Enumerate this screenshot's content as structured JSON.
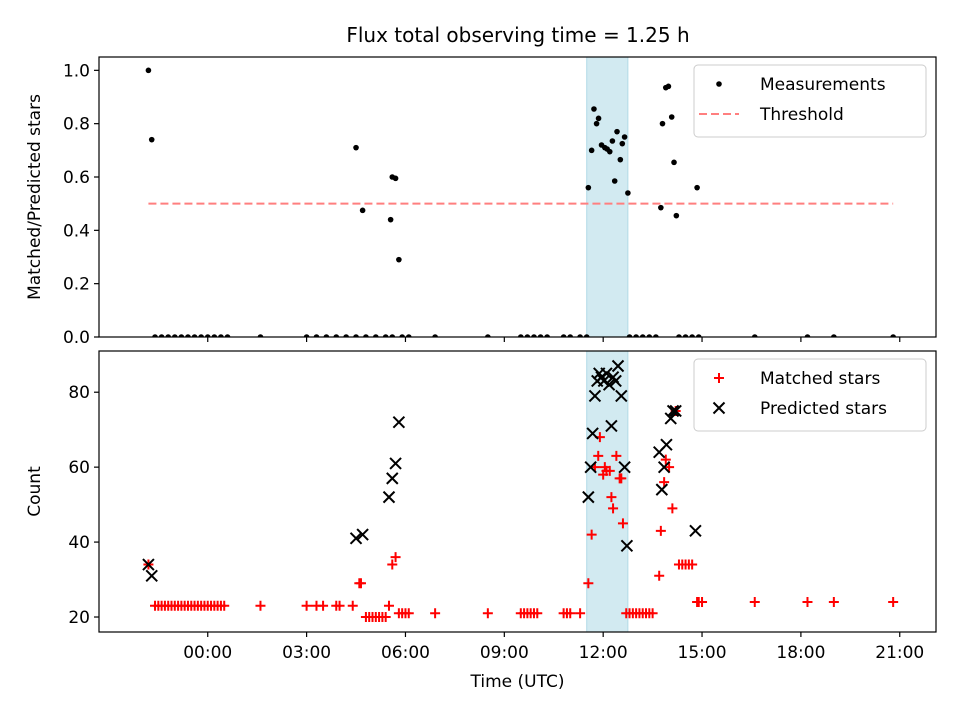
{
  "title": "Flux total observing time = 1.25 h",
  "chart_data": [
    {
      "type": "scatter",
      "panel": "top",
      "ylabel": "Matched/Predicted stars",
      "ylim": [
        0,
        1.05
      ],
      "yticks": [
        0.0,
        0.2,
        0.4,
        0.6,
        0.8,
        1.0
      ],
      "ytick_labels": [
        "0.0",
        "0.2",
        "0.4",
        "0.6",
        "0.8",
        "1.0"
      ],
      "xlim_hours": [
        -3.3,
        22.1
      ],
      "highlight_span_hours": [
        11.5,
        12.75
      ],
      "highlight_color": "#add8e6",
      "legend_position": "upper right",
      "series": [
        {
          "name": "Measurements",
          "kind": "dot",
          "color": "#000000",
          "points": [
            [
              -1.8,
              1.0
            ],
            [
              -1.7,
              0.74
            ],
            [
              4.5,
              0.71
            ],
            [
              4.7,
              0.475
            ],
            [
              5.55,
              0.44
            ],
            [
              5.6,
              0.6
            ],
            [
              5.7,
              0.595
            ],
            [
              5.8,
              0.29
            ],
            [
              11.55,
              0.56
            ],
            [
              11.65,
              0.7
            ],
            [
              11.72,
              0.855
            ],
            [
              11.8,
              0.8
            ],
            [
              11.86,
              0.82
            ],
            [
              11.95,
              0.72
            ],
            [
              12.05,
              0.71
            ],
            [
              12.12,
              0.705
            ],
            [
              12.2,
              0.695
            ],
            [
              12.28,
              0.735
            ],
            [
              12.35,
              0.585
            ],
            [
              12.42,
              0.77
            ],
            [
              12.52,
              0.665
            ],
            [
              12.58,
              0.725
            ],
            [
              12.65,
              0.75
            ],
            [
              12.75,
              0.54
            ],
            [
              13.75,
              0.485
            ],
            [
              13.8,
              0.8
            ],
            [
              13.9,
              0.935
            ],
            [
              13.98,
              0.94
            ],
            [
              14.08,
              0.825
            ],
            [
              14.15,
              0.655
            ],
            [
              14.22,
              0.455
            ],
            [
              14.85,
              0.56
            ],
            [
              -1.6,
              0
            ],
            [
              -1.4,
              0
            ],
            [
              -1.2,
              0
            ],
            [
              -1.0,
              0
            ],
            [
              -0.8,
              0
            ],
            [
              -0.6,
              0
            ],
            [
              -0.4,
              0
            ],
            [
              -0.2,
              0
            ],
            [
              0.0,
              0
            ],
            [
              0.2,
              0
            ],
            [
              0.4,
              0
            ],
            [
              0.6,
              0
            ],
            [
              1.6,
              0
            ],
            [
              3.0,
              0
            ],
            [
              3.3,
              0
            ],
            [
              3.6,
              0
            ],
            [
              3.9,
              0
            ],
            [
              4.2,
              0
            ],
            [
              4.5,
              0
            ],
            [
              4.8,
              0
            ],
            [
              5.1,
              0
            ],
            [
              5.4,
              0
            ],
            [
              5.6,
              0
            ],
            [
              5.9,
              0
            ],
            [
              6.1,
              0
            ],
            [
              6.9,
              0
            ],
            [
              8.5,
              0
            ],
            [
              9.5,
              0
            ],
            [
              9.7,
              0
            ],
            [
              9.9,
              0
            ],
            [
              10.1,
              0
            ],
            [
              10.3,
              0
            ],
            [
              10.8,
              0
            ],
            [
              11.0,
              0
            ],
            [
              11.3,
              0
            ],
            [
              11.5,
              0
            ],
            [
              12.8,
              0
            ],
            [
              13.0,
              0
            ],
            [
              13.2,
              0
            ],
            [
              13.4,
              0
            ],
            [
              13.6,
              0
            ],
            [
              14.3,
              0
            ],
            [
              14.5,
              0
            ],
            [
              14.7,
              0
            ],
            [
              14.9,
              0
            ],
            [
              16.6,
              0
            ],
            [
              18.2,
              0
            ],
            [
              19.0,
              0
            ],
            [
              20.8,
              0
            ]
          ]
        },
        {
          "name": "Threshold",
          "kind": "dashed-line",
          "color": "#ff7f7f",
          "points": [
            [
              -1.8,
              0.5
            ],
            [
              20.8,
              0.5
            ]
          ]
        }
      ]
    },
    {
      "type": "scatter",
      "panel": "bottom",
      "xlabel": "Time (UTC)",
      "ylabel": "Count",
      "ylim": [
        16,
        91
      ],
      "yticks": [
        20,
        40,
        60,
        80
      ],
      "ytick_labels": [
        "20",
        "40",
        "60",
        "80"
      ],
      "xlim_hours": [
        -3.3,
        22.1
      ],
      "xticks_hours": [
        0,
        3,
        6,
        9,
        12,
        15,
        18,
        21
      ],
      "xtick_labels": [
        "00:00",
        "03:00",
        "06:00",
        "09:00",
        "12:00",
        "15:00",
        "18:00",
        "21:00"
      ],
      "highlight_span_hours": [
        11.5,
        12.75
      ],
      "highlight_color": "#add8e6",
      "legend_position": "upper right",
      "series": [
        {
          "name": "Matched stars",
          "kind": "plus",
          "color": "#ff0000",
          "points": [
            [
              -1.8,
              34
            ],
            [
              -1.6,
              23
            ],
            [
              -1.5,
              23
            ],
            [
              -1.4,
              23
            ],
            [
              -1.3,
              23
            ],
            [
              -1.2,
              23
            ],
            [
              -1.1,
              23
            ],
            [
              -1.0,
              23
            ],
            [
              -0.9,
              23
            ],
            [
              -0.8,
              23
            ],
            [
              -0.7,
              23
            ],
            [
              -0.6,
              23
            ],
            [
              -0.5,
              23
            ],
            [
              -0.4,
              23
            ],
            [
              -0.3,
              23
            ],
            [
              -0.2,
              23
            ],
            [
              -0.1,
              23
            ],
            [
              0.0,
              23
            ],
            [
              0.1,
              23
            ],
            [
              0.2,
              23
            ],
            [
              0.3,
              23
            ],
            [
              0.4,
              23
            ],
            [
              0.5,
              23
            ],
            [
              1.6,
              23
            ],
            [
              3.0,
              23
            ],
            [
              3.3,
              23
            ],
            [
              3.5,
              23
            ],
            [
              3.9,
              23
            ],
            [
              4.0,
              23
            ],
            [
              4.4,
              23
            ],
            [
              4.6,
              29
            ],
            [
              4.65,
              29
            ],
            [
              4.8,
              20
            ],
            [
              4.9,
              20
            ],
            [
              5.0,
              20
            ],
            [
              5.1,
              20
            ],
            [
              5.2,
              20
            ],
            [
              5.3,
              20
            ],
            [
              5.4,
              20
            ],
            [
              5.5,
              23
            ],
            [
              5.6,
              34
            ],
            [
              5.7,
              36
            ],
            [
              5.8,
              21
            ],
            [
              5.9,
              21
            ],
            [
              6.0,
              21
            ],
            [
              6.1,
              21
            ],
            [
              6.9,
              21
            ],
            [
              8.5,
              21
            ],
            [
              9.5,
              21
            ],
            [
              9.6,
              21
            ],
            [
              9.7,
              21
            ],
            [
              9.8,
              21
            ],
            [
              9.9,
              21
            ],
            [
              10.0,
              21
            ],
            [
              10.8,
              21
            ],
            [
              10.9,
              21
            ],
            [
              11.0,
              21
            ],
            [
              11.3,
              21
            ],
            [
              11.55,
              29
            ],
            [
              11.65,
              42
            ],
            [
              11.75,
              60
            ],
            [
              11.85,
              63
            ],
            [
              11.9,
              68
            ],
            [
              12.0,
              58
            ],
            [
              12.05,
              60
            ],
            [
              12.1,
              59
            ],
            [
              12.2,
              59
            ],
            [
              12.25,
              52
            ],
            [
              12.3,
              49
            ],
            [
              12.4,
              63
            ],
            [
              12.5,
              57
            ],
            [
              12.55,
              57
            ],
            [
              12.6,
              45
            ],
            [
              12.7,
              21
            ],
            [
              12.8,
              21
            ],
            [
              12.9,
              21
            ],
            [
              13.0,
              21
            ],
            [
              13.1,
              21
            ],
            [
              13.2,
              21
            ],
            [
              13.3,
              21
            ],
            [
              13.4,
              21
            ],
            [
              13.5,
              21
            ],
            [
              13.7,
              31
            ],
            [
              13.75,
              43
            ],
            [
              13.85,
              56
            ],
            [
              13.9,
              62
            ],
            [
              14.0,
              60
            ],
            [
              14.1,
              49
            ],
            [
              14.2,
              75
            ],
            [
              14.3,
              34
            ],
            [
              14.4,
              34
            ],
            [
              14.5,
              34
            ],
            [
              14.6,
              34
            ],
            [
              14.7,
              34
            ],
            [
              14.85,
              24
            ],
            [
              14.9,
              24
            ],
            [
              15.0,
              24
            ],
            [
              16.6,
              24
            ],
            [
              18.2,
              24
            ],
            [
              19.0,
              24
            ],
            [
              20.8,
              24
            ]
          ]
        },
        {
          "name": "Predicted stars",
          "kind": "x",
          "color": "#000000",
          "points": [
            [
              -1.8,
              34
            ],
            [
              -1.7,
              31
            ],
            [
              4.5,
              41
            ],
            [
              4.7,
              42
            ],
            [
              5.5,
              52
            ],
            [
              5.6,
              57
            ],
            [
              5.7,
              61
            ],
            [
              5.8,
              72
            ],
            [
              11.55,
              52
            ],
            [
              11.62,
              60
            ],
            [
              11.68,
              69
            ],
            [
              11.75,
              79
            ],
            [
              11.82,
              83
            ],
            [
              11.88,
              85
            ],
            [
              11.95,
              84
            ],
            [
              12.02,
              83
            ],
            [
              12.1,
              85
            ],
            [
              12.18,
              82
            ],
            [
              12.25,
              71
            ],
            [
              12.3,
              84
            ],
            [
              12.38,
              83
            ],
            [
              12.45,
              87
            ],
            [
              12.55,
              79
            ],
            [
              12.65,
              60
            ],
            [
              12.72,
              39
            ],
            [
              13.7,
              64
            ],
            [
              13.78,
              54
            ],
            [
              13.85,
              60
            ],
            [
              13.92,
              66
            ],
            [
              14.05,
              73
            ],
            [
              14.12,
              75
            ],
            [
              14.2,
              75
            ],
            [
              14.8,
              43
            ]
          ]
        }
      ]
    }
  ]
}
